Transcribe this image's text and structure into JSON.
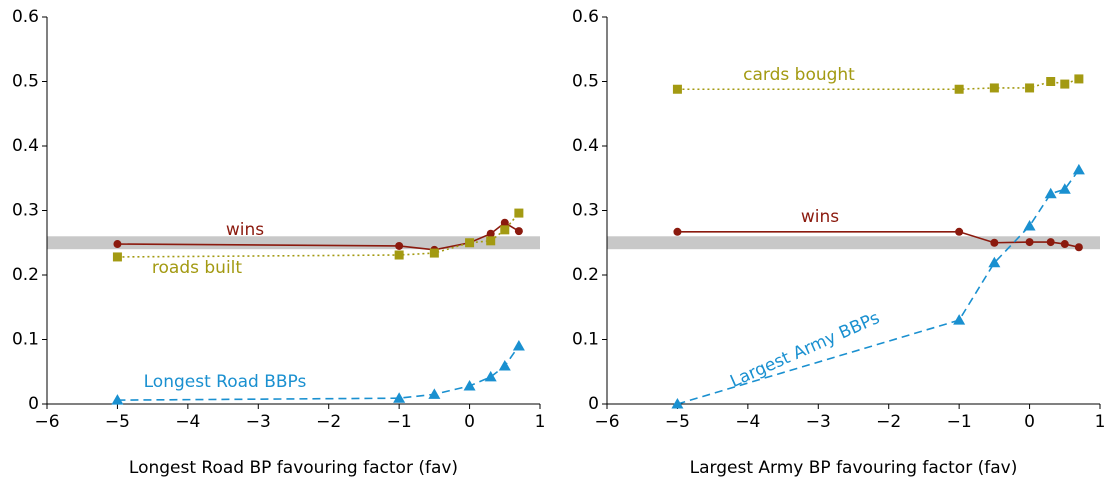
{
  "chart_data": [
    {
      "type": "line",
      "x_label": "Longest Road BP favouring factor (fav)",
      "x": [
        -5,
        -1,
        -0.5,
        0,
        0.3,
        0.5,
        0.7
      ],
      "xlim": [
        -6,
        1
      ],
      "xticks": [
        {
          "value": -6,
          "label": "−6"
        },
        {
          "value": -5,
          "label": "−5"
        },
        {
          "value": -4,
          "label": "−4"
        },
        {
          "value": -3,
          "label": "−3"
        },
        {
          "value": -2,
          "label": "−2"
        },
        {
          "value": -1,
          "label": "−1"
        },
        0,
        1
      ],
      "ylim": [
        0,
        0.6
      ],
      "yticks": [
        0,
        0.1,
        0.2,
        0.3,
        0.4,
        0.5,
        0.6
      ],
      "reference_band": [
        0.24,
        0.26
      ],
      "band_color": "#c8c8c8",
      "series": [
        {
          "name": "wins",
          "color": "#8b1a0e",
          "dash": "solid",
          "marker": "circle",
          "values": [
            0.248,
            0.245,
            0.239,
            0.25,
            0.264,
            0.281,
            0.268
          ]
        },
        {
          "name": "roads built",
          "color": "#a39a12",
          "dash": "dotted",
          "marker": "square",
          "values": [
            0.228,
            0.231,
            0.234,
            0.25,
            0.253,
            0.27,
            0.296
          ]
        },
        {
          "name": "Longest Road BBPs",
          "color": "#1a90d0",
          "dash": "dashed",
          "marker": "triangle",
          "values": [
            0.006,
            0.009,
            0.015,
            0.028,
            0.042,
            0.059,
            0.09
          ]
        }
      ]
    },
    {
      "type": "line",
      "x_label": "Largest Army BP favouring factor (fav)",
      "x": [
        -5,
        -1,
        -0.5,
        0,
        0.3,
        0.5,
        0.7
      ],
      "xlim": [
        -6,
        1
      ],
      "xticks": [
        {
          "value": -6,
          "label": "−6"
        },
        {
          "value": -5,
          "label": "−5"
        },
        {
          "value": -4,
          "label": "−4"
        },
        {
          "value": -3,
          "label": "−3"
        },
        {
          "value": -2,
          "label": "−2"
        },
        {
          "value": -1,
          "label": "−1"
        },
        0,
        1
      ],
      "ylim": [
        0,
        0.6
      ],
      "yticks": [
        0,
        0.1,
        0.2,
        0.3,
        0.4,
        0.5,
        0.6
      ],
      "reference_band": [
        0.24,
        0.26
      ],
      "band_color": "#c8c8c8",
      "series": [
        {
          "name": "cards bought",
          "color": "#a39a12",
          "dash": "dotted",
          "marker": "square",
          "values": [
            0.488,
            0.488,
            0.49,
            0.49,
            0.5,
            0.496,
            0.504
          ]
        },
        {
          "name": "wins",
          "color": "#8b1a0e",
          "dash": "solid",
          "marker": "circle",
          "values": [
            0.267,
            0.267,
            0.25,
            0.251,
            0.251,
            0.248,
            0.243
          ]
        },
        {
          "name": "Largest Army BBPs",
          "color": "#1a90d0",
          "dash": "dashed",
          "marker": "triangle",
          "values": [
            0,
            0.13,
            0.219,
            0.276,
            0.326,
            0.333,
            0.363
          ]
        }
      ]
    }
  ]
}
